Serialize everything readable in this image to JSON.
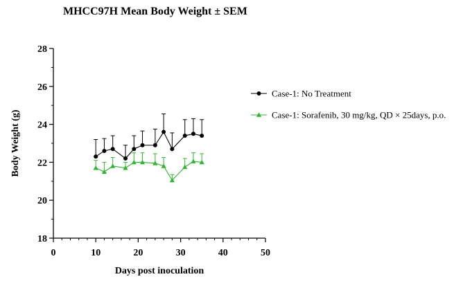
{
  "chart_data": {
    "type": "line",
    "title": "MHCC97H Mean Body Weight ± SEM",
    "xlabel": "Days post inoculation",
    "ylabel": "Body Weight (g)",
    "xlim": [
      0,
      50
    ],
    "ylim": [
      18,
      28
    ],
    "xticks": [
      0,
      10,
      20,
      30,
      40,
      50
    ],
    "yticks": [
      18,
      20,
      22,
      24,
      26,
      28
    ],
    "grid": false,
    "legend_position": "right",
    "series": [
      {
        "name": "Case-1: No Treatment",
        "color": "#000000",
        "marker": "circle",
        "x": [
          10,
          12,
          14,
          17,
          19,
          21,
          24,
          26,
          28,
          31,
          33,
          35
        ],
        "y": [
          22.3,
          22.6,
          22.7,
          22.2,
          22.7,
          22.9,
          22.9,
          23.6,
          22.7,
          23.4,
          23.5,
          23.4
        ],
        "sem": [
          0.9,
          0.65,
          0.7,
          0.7,
          0.7,
          0.75,
          0.85,
          0.95,
          0.85,
          0.85,
          0.8,
          0.85
        ]
      },
      {
        "name": "Case-1: Sorafenib, 30 mg/kg, QD × 25days, p.o.",
        "color": "#2db82d",
        "marker": "triangle",
        "x": [
          10,
          12,
          14,
          17,
          19,
          21,
          24,
          26,
          28,
          31,
          33,
          35
        ],
        "y": [
          21.7,
          21.5,
          21.8,
          21.7,
          22.0,
          22.0,
          21.95,
          21.8,
          21.05,
          21.75,
          22.05,
          22.0
        ],
        "sem": [
          0.4,
          0.5,
          0.45,
          0.3,
          0.5,
          0.5,
          0.5,
          0.45,
          0.3,
          0.45,
          0.45,
          0.45
        ]
      }
    ]
  }
}
